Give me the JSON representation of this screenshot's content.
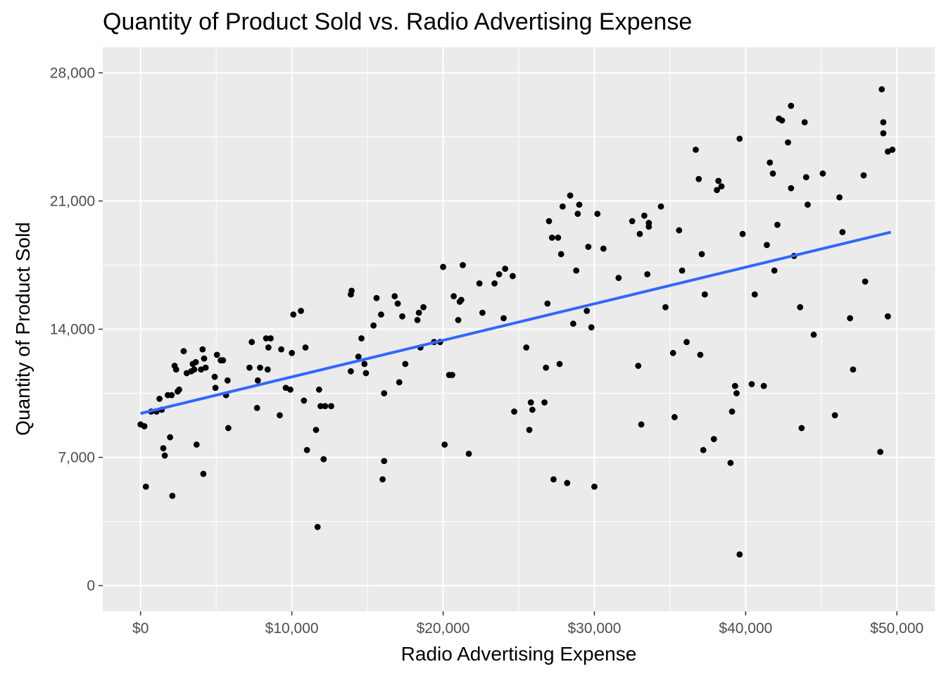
{
  "chart_data": {
    "type": "scatter",
    "title": "Quantity of Product Sold vs. Radio Advertising Expense",
    "xlabel": "Radio Advertising Expense",
    "ylabel": "Quantity of Product Sold",
    "xlim": [
      -2500,
      52500
    ],
    "ylim": [
      -1400,
      29400
    ],
    "x_ticks": [
      0,
      10000,
      20000,
      30000,
      40000,
      50000
    ],
    "x_tick_labels": [
      "$0",
      "$10,000",
      "$20,000",
      "$30,000",
      "$40,000",
      "$50,000"
    ],
    "y_ticks": [
      0,
      7000,
      14000,
      21000,
      28000
    ],
    "y_tick_labels": [
      "0",
      "7,000",
      "14,000",
      "21,000",
      "28,000"
    ],
    "grid": true,
    "panel_color": "#ebebeb",
    "point_color": "#000000",
    "trend_line": {
      "method": "linear",
      "color": "#3366ff",
      "x": [
        0,
        49600
      ],
      "y": [
        9400,
        19300
      ]
    },
    "series": [
      {
        "points": [
          [
            0,
            8800
          ],
          [
            250,
            8700
          ],
          [
            350,
            5400
          ],
          [
            700,
            9500
          ],
          [
            1050,
            9500
          ],
          [
            1250,
            10200
          ],
          [
            1400,
            9600
          ],
          [
            1500,
            7500
          ],
          [
            1600,
            7100
          ],
          [
            1800,
            10400
          ],
          [
            1950,
            8100
          ],
          [
            2050,
            10400
          ],
          [
            2100,
            4900
          ],
          [
            2250,
            12000
          ],
          [
            2350,
            11800
          ],
          [
            2450,
            10600
          ],
          [
            2550,
            10700
          ],
          [
            2850,
            12800
          ],
          [
            3050,
            11600
          ],
          [
            3350,
            11700
          ],
          [
            3450,
            12100
          ],
          [
            3550,
            11800
          ],
          [
            3650,
            12200
          ],
          [
            3700,
            7700
          ],
          [
            4000,
            11800
          ],
          [
            4100,
            12900
          ],
          [
            4150,
            6100
          ],
          [
            4200,
            12400
          ],
          [
            4300,
            11900
          ],
          [
            4900,
            11400
          ],
          [
            4950,
            10800
          ],
          [
            5050,
            12600
          ],
          [
            5300,
            12300
          ],
          [
            5450,
            12300
          ],
          [
            5650,
            10400
          ],
          [
            5750,
            11200
          ],
          [
            5800,
            8600
          ],
          [
            7200,
            11900
          ],
          [
            7350,
            13300
          ],
          [
            7700,
            9700
          ],
          [
            7750,
            11200
          ],
          [
            7900,
            11900
          ],
          [
            8300,
            13500
          ],
          [
            8400,
            11800
          ],
          [
            8450,
            13000
          ],
          [
            8600,
            13500
          ],
          [
            9200,
            9300
          ],
          [
            9300,
            12900
          ],
          [
            9600,
            10800
          ],
          [
            9900,
            10700
          ],
          [
            10000,
            12700
          ],
          [
            10100,
            14800
          ],
          [
            10600,
            15000
          ],
          [
            10800,
            10100
          ],
          [
            10900,
            13000
          ],
          [
            11000,
            7400
          ],
          [
            11600,
            8500
          ],
          [
            11700,
            3200
          ],
          [
            11800,
            10700
          ],
          [
            11900,
            9800
          ],
          [
            12100,
            6900
          ],
          [
            12200,
            9800
          ],
          [
            12600,
            9800
          ],
          [
            13900,
            11700
          ],
          [
            13900,
            15900
          ],
          [
            13950,
            16100
          ],
          [
            14400,
            12500
          ],
          [
            14600,
            13500
          ],
          [
            14800,
            12100
          ],
          [
            14900,
            11600
          ],
          [
            15400,
            14200
          ],
          [
            15600,
            15700
          ],
          [
            15900,
            14800
          ],
          [
            16000,
            5800
          ],
          [
            16100,
            6800
          ],
          [
            16100,
            10500
          ],
          [
            16800,
            15800
          ],
          [
            17000,
            15400
          ],
          [
            17100,
            11100
          ],
          [
            17300,
            14700
          ],
          [
            17500,
            12100
          ],
          [
            18300,
            14500
          ],
          [
            18400,
            14900
          ],
          [
            18500,
            13000
          ],
          [
            18700,
            15200
          ],
          [
            19400,
            13300
          ],
          [
            19800,
            13300
          ],
          [
            20000,
            17400
          ],
          [
            20100,
            7700
          ],
          [
            20400,
            11500
          ],
          [
            20600,
            11500
          ],
          [
            20700,
            15800
          ],
          [
            21000,
            14500
          ],
          [
            21100,
            15500
          ],
          [
            21200,
            15600
          ],
          [
            21300,
            17500
          ],
          [
            21700,
            7200
          ],
          [
            22400,
            16500
          ],
          [
            22600,
            14900
          ],
          [
            23400,
            16500
          ],
          [
            23700,
            17000
          ],
          [
            24000,
            14600
          ],
          [
            24100,
            17300
          ],
          [
            24600,
            16900
          ],
          [
            24700,
            9500
          ],
          [
            25500,
            13000
          ],
          [
            25700,
            8500
          ],
          [
            25800,
            10000
          ],
          [
            25900,
            9600
          ],
          [
            26700,
            10000
          ],
          [
            26800,
            11900
          ],
          [
            26900,
            15400
          ],
          [
            27000,
            19900
          ],
          [
            27200,
            19000
          ],
          [
            27300,
            5800
          ],
          [
            27600,
            19000
          ],
          [
            27700,
            12100
          ],
          [
            27800,
            18100
          ],
          [
            27900,
            20700
          ],
          [
            28200,
            5600
          ],
          [
            28400,
            21300
          ],
          [
            28600,
            14300
          ],
          [
            28800,
            17200
          ],
          [
            28900,
            20300
          ],
          [
            29000,
            20800
          ],
          [
            29500,
            15000
          ],
          [
            29600,
            18500
          ],
          [
            29800,
            14100
          ],
          [
            30000,
            5400
          ],
          [
            30200,
            20300
          ],
          [
            30600,
            18400
          ],
          [
            31600,
            16800
          ],
          [
            32500,
            19900
          ],
          [
            32900,
            12000
          ],
          [
            33000,
            19200
          ],
          [
            33100,
            8800
          ],
          [
            33300,
            20200
          ],
          [
            33500,
            17000
          ],
          [
            33600,
            19800
          ],
          [
            33600,
            19600
          ],
          [
            34400,
            20700
          ],
          [
            34700,
            15200
          ],
          [
            35200,
            12700
          ],
          [
            35300,
            9200
          ],
          [
            35600,
            19400
          ],
          [
            35800,
            17200
          ],
          [
            36100,
            13300
          ],
          [
            36700,
            23800
          ],
          [
            36900,
            22200
          ],
          [
            37000,
            12600
          ],
          [
            37100,
            18100
          ],
          [
            37200,
            7400
          ],
          [
            37300,
            15900
          ],
          [
            37900,
            8000
          ],
          [
            38100,
            21600
          ],
          [
            38200,
            22100
          ],
          [
            38400,
            21800
          ],
          [
            39000,
            6700
          ],
          [
            39100,
            9500
          ],
          [
            39400,
            10500
          ],
          [
            39600,
            24400
          ],
          [
            39600,
            1700
          ],
          [
            39800,
            19200
          ],
          [
            39300,
            10900
          ],
          [
            40400,
            11000
          ],
          [
            40600,
            15900
          ],
          [
            41200,
            10900
          ],
          [
            41400,
            18600
          ],
          [
            41600,
            23100
          ],
          [
            41800,
            22500
          ],
          [
            41900,
            17200
          ],
          [
            42100,
            19700
          ],
          [
            42200,
            25500
          ],
          [
            42400,
            25400
          ],
          [
            42800,
            24200
          ],
          [
            43000,
            21700
          ],
          [
            43000,
            26200
          ],
          [
            43200,
            18000
          ],
          [
            43600,
            15200
          ],
          [
            43700,
            8600
          ],
          [
            43900,
            25300
          ],
          [
            44000,
            22300
          ],
          [
            44100,
            20800
          ],
          [
            44500,
            13700
          ],
          [
            45100,
            22500
          ],
          [
            45900,
            9300
          ],
          [
            46200,
            21200
          ],
          [
            46400,
            19300
          ],
          [
            46900,
            14600
          ],
          [
            47100,
            11800
          ],
          [
            47800,
            22400
          ],
          [
            47900,
            16600
          ],
          [
            48900,
            7300
          ],
          [
            49000,
            27100
          ],
          [
            49100,
            24700
          ],
          [
            49100,
            25300
          ],
          [
            49400,
            23700
          ],
          [
            49400,
            14700
          ],
          [
            49700,
            23800
          ]
        ]
      }
    ]
  }
}
